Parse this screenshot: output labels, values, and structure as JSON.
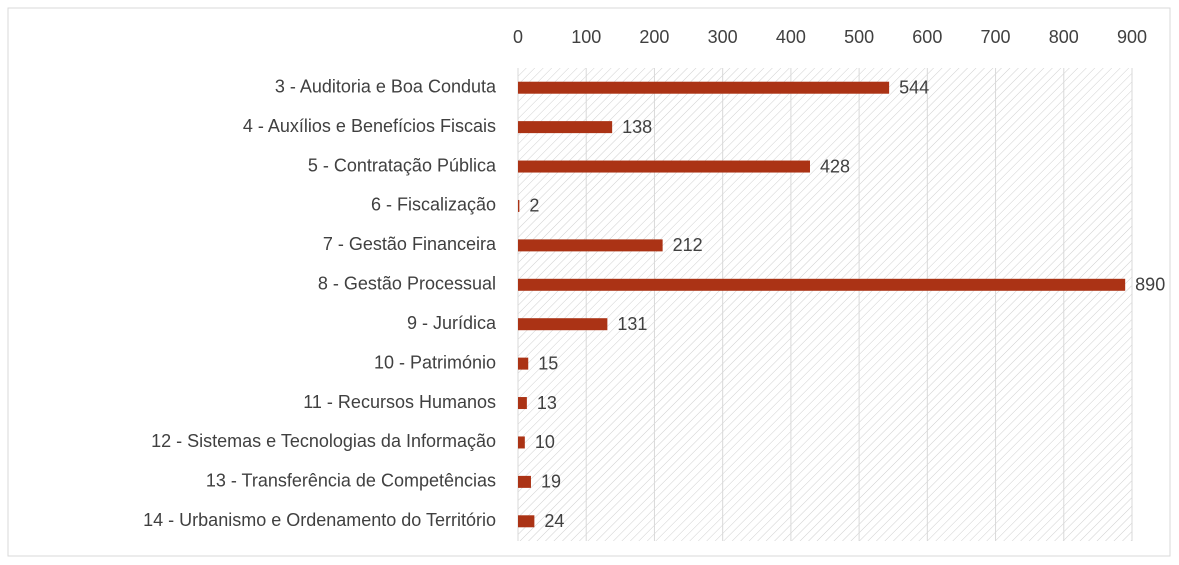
{
  "chart_data": {
    "type": "bar",
    "orientation": "horizontal",
    "categories": [
      "3 - Auditoria e Boa Conduta",
      "4 - Auxílios e Benefícios Fiscais",
      "5 - Contratação Pública",
      "6 - Fiscalização",
      "7 - Gestão Financeira",
      "8 - Gestão Processual",
      "9 - Jurídica",
      "10 - Património",
      "11 - Recursos Humanos",
      "12 - Sistemas e Tecnologias da Informação",
      "13 - Transferência de Competências",
      "14 - Urbanismo e Ordenamento do Território"
    ],
    "values": [
      544,
      138,
      428,
      2,
      212,
      890,
      131,
      15,
      13,
      10,
      19,
      24
    ],
    "color": "#ab3315",
    "xlim": [
      0,
      900
    ],
    "xticks": [
      0,
      100,
      200,
      300,
      400,
      500,
      600,
      700,
      800,
      900
    ],
    "grid": true
  }
}
